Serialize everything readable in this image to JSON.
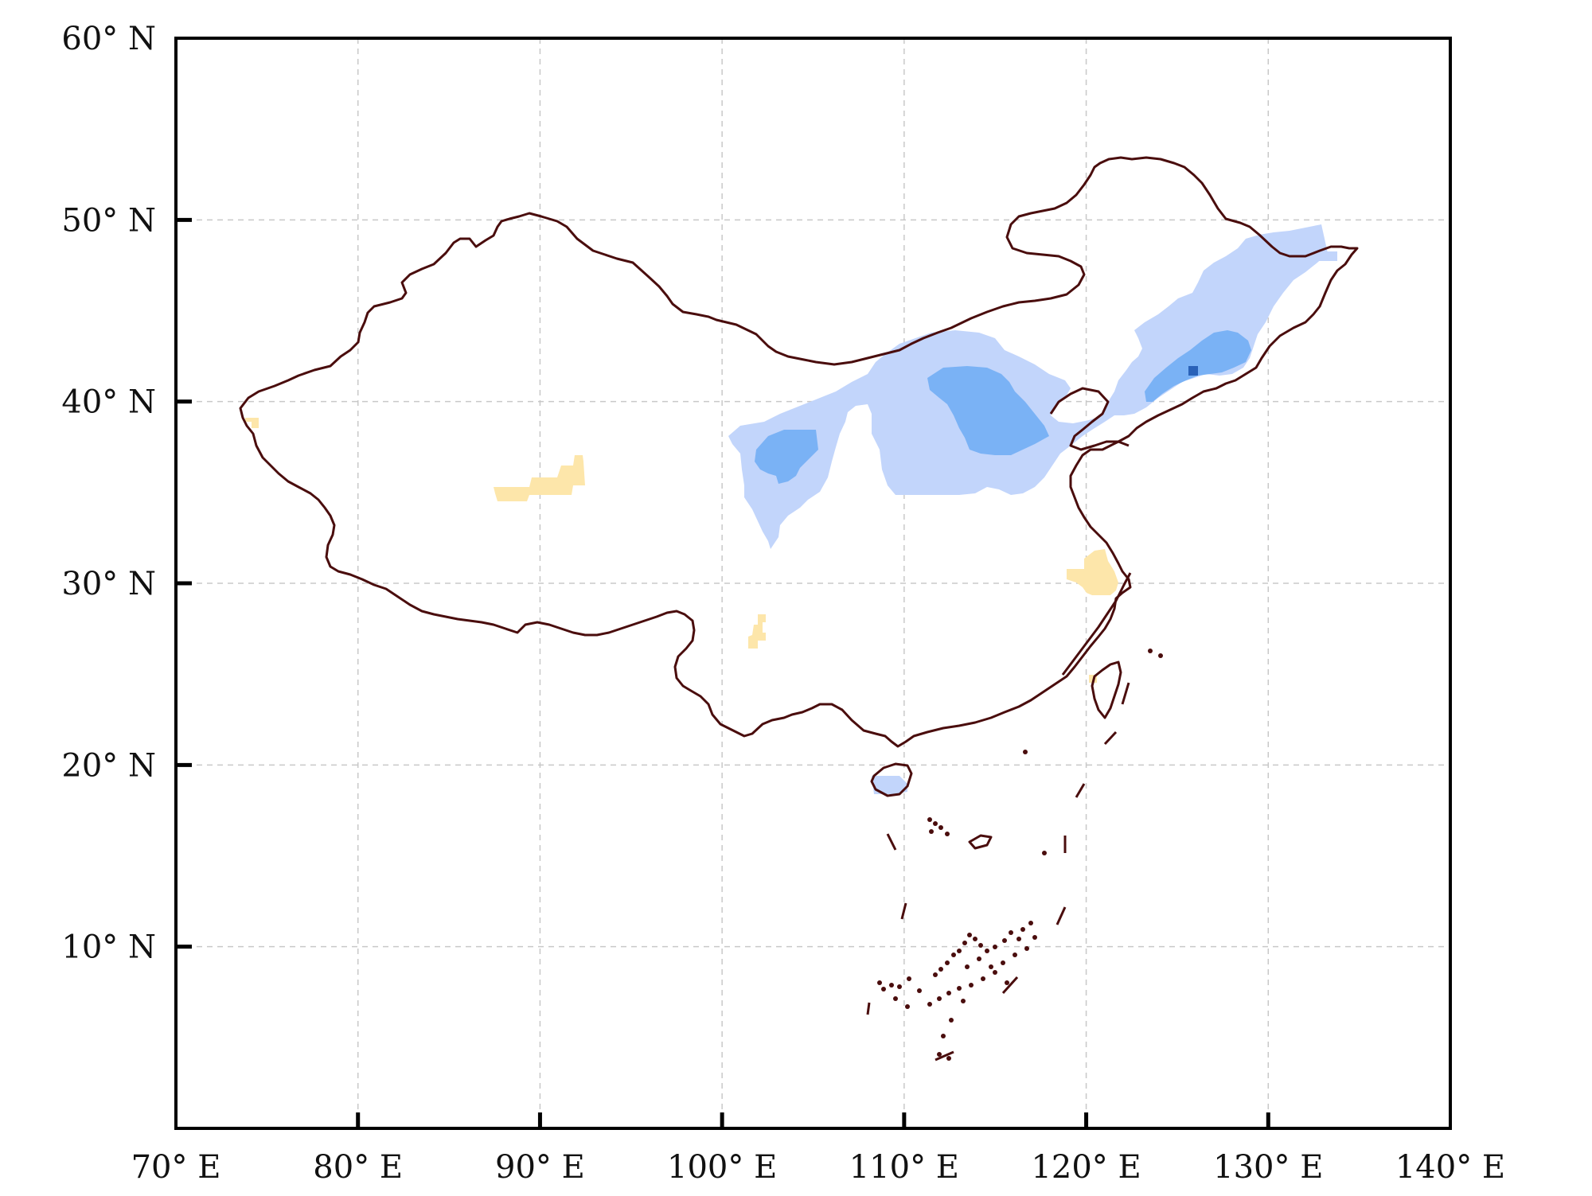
{
  "map": {
    "lon_range": [
      70,
      140
    ],
    "lat_range": [
      0,
      60
    ],
    "grid": true,
    "x_ticks": [
      {
        "lon": 70,
        "label": "70° E"
      },
      {
        "lon": 80,
        "label": "80° E"
      },
      {
        "lon": 90,
        "label": "90° E"
      },
      {
        "lon": 100,
        "label": "100° E"
      },
      {
        "lon": 110,
        "label": "110° E"
      },
      {
        "lon": 120,
        "label": "120° E"
      },
      {
        "lon": 130,
        "label": "130° E"
      },
      {
        "lon": 140,
        "label": "140° E"
      }
    ],
    "y_ticks": [
      {
        "lat": 60,
        "label": "60° N"
      },
      {
        "lat": 50,
        "label": "50° N"
      },
      {
        "lat": 40,
        "label": "40° N"
      },
      {
        "lat": 30,
        "label": "30° N"
      },
      {
        "lat": 20,
        "label": "20° N"
      },
      {
        "lat": 10,
        "label": "10° N"
      }
    ],
    "colors": {
      "border": "#4a0d0d",
      "grid": "#c8c8c8",
      "frame": "#000000",
      "light_blue": "#c2d5fb",
      "mid_blue": "#7ab2f5",
      "dark_blue": "#2a62b8",
      "light_yellow": "#fde6aa"
    },
    "icons": [
      "china-outline",
      "south-china-sea-islands"
    ]
  }
}
